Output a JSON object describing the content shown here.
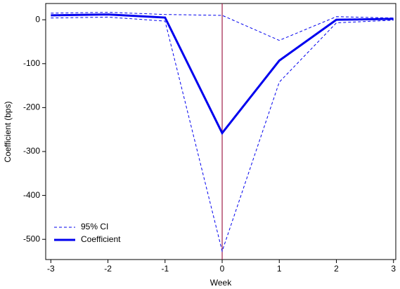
{
  "chart_data": {
    "type": "line",
    "x_label": "Week",
    "y_label": "Coefficient (bps)",
    "x": [
      -3,
      -2,
      -1,
      0,
      1,
      2,
      3
    ],
    "series": [
      {
        "name": "95% CI",
        "color": "#0000ee",
        "style": "dashed",
        "lower": [
          4,
          6,
          -3,
          -527,
          -142,
          -7,
          -1
        ],
        "upper": [
          15,
          17,
          12,
          10,
          -47,
          7,
          4
        ]
      },
      {
        "name": "Coefficient",
        "color": "#0000ee",
        "style": "solid",
        "values": [
          10,
          12,
          5,
          -258,
          -93,
          0,
          2
        ]
      }
    ],
    "xlim": [
      -3.09,
      3.04
    ],
    "ylim": [
      -546,
      37
    ],
    "xticks": [
      -3,
      -2,
      -1,
      0,
      1,
      2,
      3
    ],
    "yticks": [
      0,
      -100,
      -200,
      -300,
      -400,
      -500
    ],
    "vline": {
      "x": 0,
      "color": "#a0204a"
    },
    "legend": "lower-left",
    "grid": false
  }
}
